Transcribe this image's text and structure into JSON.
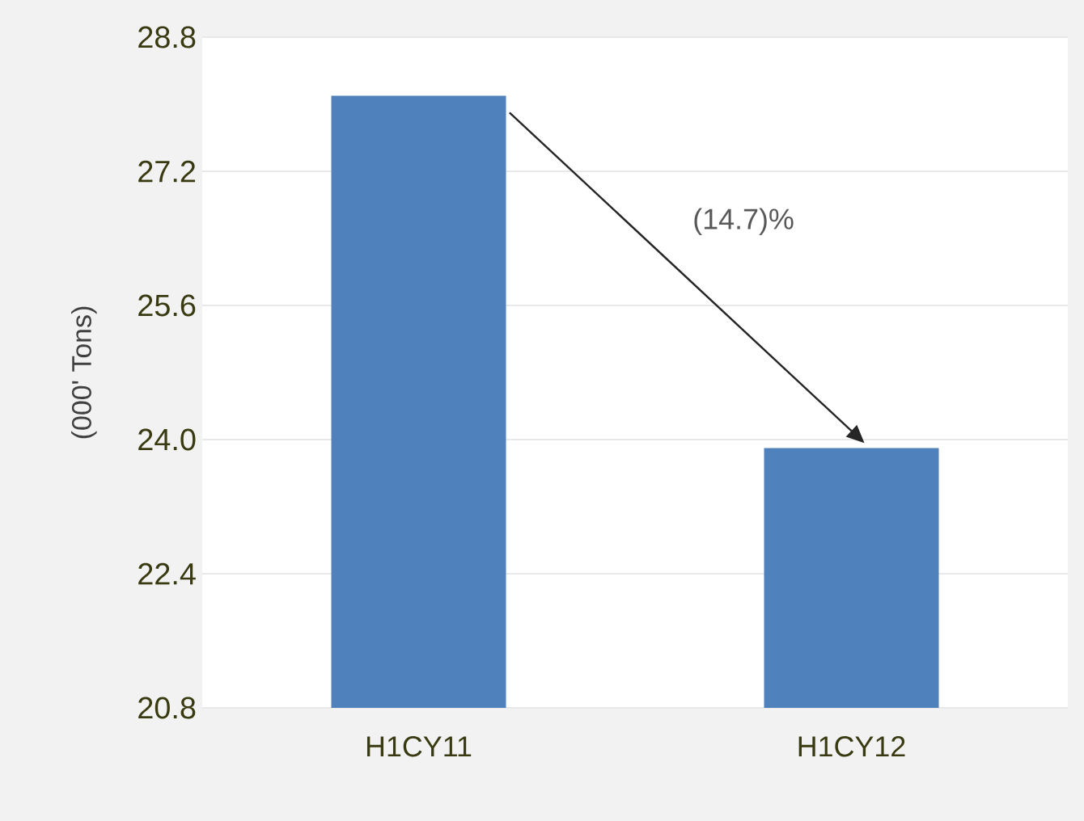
{
  "chart_data": {
    "type": "bar",
    "ylabel": "(000' Tons)",
    "categories": [
      "H1CY11",
      "H1CY12"
    ],
    "values": [
      28.1,
      23.9
    ],
    "color": "#4f81bd",
    "ylim": [
      20.8,
      28.8
    ],
    "yticks": [
      {
        "value": 20.8,
        "label": "20.8"
      },
      {
        "value": 22.4,
        "label": "22.4"
      },
      {
        "value": 24.0,
        "label": "24.0"
      },
      {
        "value": 25.6,
        "label": "25.6"
      },
      {
        "value": 27.2,
        "label": "27.2"
      },
      {
        "value": 28.8,
        "label": "28.8"
      }
    ],
    "grid": "y",
    "annotations": [
      "(14.7)%"
    ]
  }
}
